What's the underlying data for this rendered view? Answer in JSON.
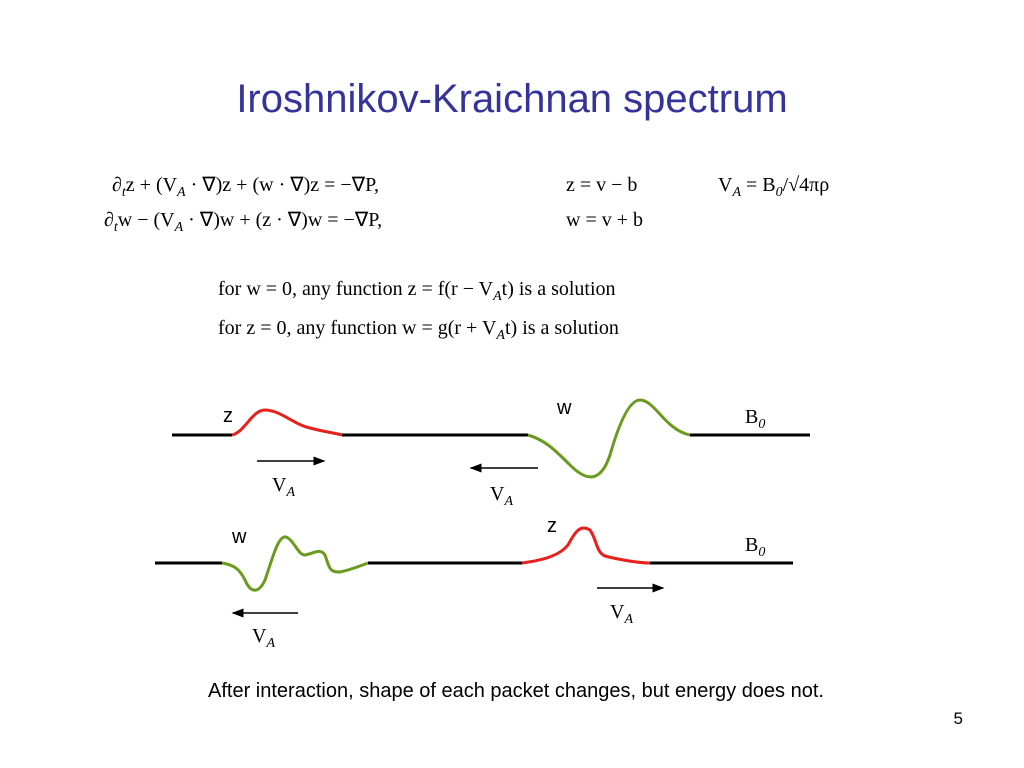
{
  "title": "Iroshnikov-Kraichnan spectrum",
  "equations": {
    "left": [
      [
        "∂",
        [
          "t"
        ],
        "z + (V",
        [
          "A"
        ],
        " · ∇)z + (w · ∇)z = −∇P,"
      ],
      [
        "∂",
        [
          "t"
        ],
        "w − (V",
        [
          "A"
        ],
        " · ∇)w + (z · ∇)w = −∇P,"
      ]
    ],
    "middle": [
      [
        "z = v − b"
      ],
      [
        "w = v + b"
      ]
    ],
    "right": [
      [
        "V",
        [
          "A"
        ],
        " = B",
        [
          "0"
        ],
        "/√4πρ"
      ]
    ]
  },
  "solutions": [
    [
      "for  w = 0,  any  function  z = f(r − V",
      [
        "A"
      ],
      "t)  is  a  solution"
    ],
    [
      "for  z = 0,  any  function  w = g(r + V",
      [
        "A"
      ],
      "t)  is  a  solution"
    ]
  ],
  "diagram": {
    "before": {
      "z": [
        "z"
      ],
      "w": [
        "w"
      ],
      "field": [
        "B",
        [
          "0"
        ]
      ],
      "speed_right": [
        "V",
        [
          "A"
        ]
      ],
      "speed_left": [
        "V",
        [
          "A"
        ]
      ]
    },
    "after": {
      "w": [
        "w"
      ],
      "z": [
        "z"
      ],
      "field": [
        "B",
        [
          "0"
        ]
      ],
      "speed_left": [
        "V",
        [
          "A"
        ]
      ],
      "speed_right": [
        "V",
        [
          "A"
        ]
      ]
    }
  },
  "caption": "After interaction, shape of each packet changes, but energy does not.",
  "page_number": "5"
}
